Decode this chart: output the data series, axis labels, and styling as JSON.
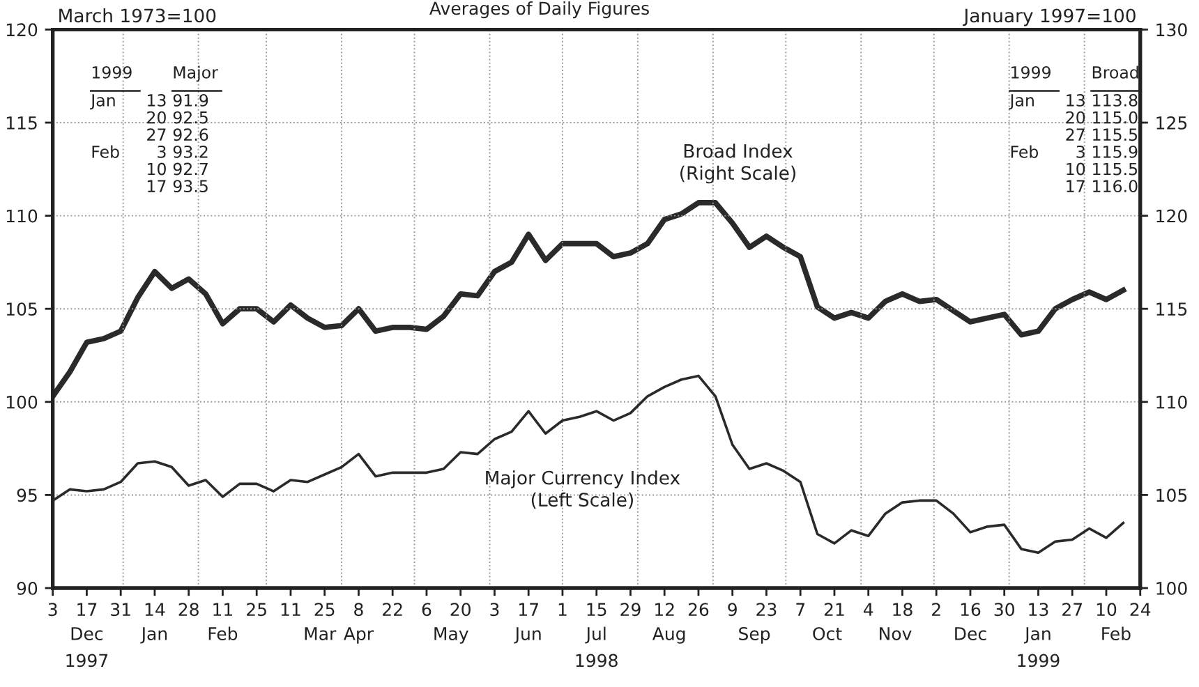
{
  "chart_data": {
    "type": "line",
    "title": "Averages of Daily Figures",
    "ylabel": "March 1973=100",
    "y2label": "January 1997=100",
    "x": [
      "1997-12-03",
      "1997-12-10",
      "1997-12-17",
      "1997-12-24",
      "1997-12-31",
      "1998-01-07",
      "1998-01-14",
      "1998-01-21",
      "1998-01-28",
      "1998-02-04",
      "1998-02-11",
      "1998-02-18",
      "1998-02-25",
      "1998-03-04",
      "1998-03-11",
      "1998-03-18",
      "1998-03-25",
      "1998-04-01",
      "1998-04-08",
      "1998-04-15",
      "1998-04-22",
      "1998-04-29",
      "1998-05-06",
      "1998-05-13",
      "1998-05-20",
      "1998-05-27",
      "1998-06-03",
      "1998-06-10",
      "1998-06-17",
      "1998-06-24",
      "1998-07-01",
      "1998-07-08",
      "1998-07-15",
      "1998-07-22",
      "1998-07-29",
      "1998-08-05",
      "1998-08-12",
      "1998-08-19",
      "1998-08-26",
      "1998-09-02",
      "1998-09-09",
      "1998-09-16",
      "1998-09-23",
      "1998-09-30",
      "1998-10-07",
      "1998-10-14",
      "1998-10-21",
      "1998-10-28",
      "1998-11-04",
      "1998-11-11",
      "1998-11-18",
      "1998-11-25",
      "1998-12-02",
      "1998-12-09",
      "1998-12-16",
      "1998-12-23",
      "1998-12-30",
      "1999-01-06",
      "1999-01-13",
      "1999-01-20",
      "1999-01-27",
      "1999-02-03",
      "1999-02-10",
      "1999-02-17"
    ],
    "series": [
      {
        "name": "Major Currency Index\n(Left Scale)",
        "color": "#2a2a2a",
        "values": [
          94.7,
          95.3,
          95.2,
          95.3,
          95.7,
          96.7,
          96.8,
          96.5,
          95.5,
          95.8,
          94.9,
          95.6,
          95.6,
          95.2,
          95.8,
          95.7,
          96.1,
          96.5,
          97.2,
          96.0,
          96.2,
          96.2,
          96.2,
          96.4,
          97.3,
          97.2,
          98.0,
          98.4,
          99.5,
          98.3,
          99.0,
          99.2,
          99.5,
          99.0,
          99.4,
          100.3,
          100.8,
          101.2,
          101.4,
          100.3,
          97.7,
          96.4,
          96.7,
          96.3,
          95.7,
          92.9,
          92.4,
          93.1,
          92.8,
          94.0,
          94.6,
          94.7,
          94.7,
          94.0,
          93.0,
          93.3,
          93.4,
          92.1,
          91.9,
          92.5,
          92.6,
          93.2,
          92.7,
          93.5
        ]
      },
      {
        "name": "Broad Index\n(Right Scale)",
        "color": "#2a2a2a",
        "axis": "y2",
        "values": [
          110.3,
          111.6,
          113.2,
          113.4,
          113.8,
          115.6,
          117.0,
          116.1,
          116.6,
          115.8,
          114.2,
          115.0,
          115.0,
          114.3,
          115.2,
          114.5,
          114.0,
          114.1,
          115.0,
          113.8,
          114.0,
          114.0,
          113.9,
          114.6,
          115.8,
          115.7,
          117.0,
          117.5,
          119.0,
          117.6,
          118.5,
          118.5,
          118.5,
          117.8,
          118.0,
          118.5,
          119.8,
          120.1,
          120.7,
          120.7,
          119.6,
          118.3,
          118.9,
          118.3,
          117.8,
          115.1,
          114.5,
          114.8,
          114.5,
          115.4,
          115.8,
          115.4,
          115.5,
          114.9,
          114.3,
          114.5,
          114.7,
          113.6,
          113.8,
          115.0,
          115.5,
          115.9,
          115.5,
          116.0
        ]
      }
    ],
    "xlim": [
      "1997-12-03",
      "1999-02-24"
    ],
    "xticks": [
      {
        "value": "1997-12-03",
        "label": "3"
      },
      {
        "value": "1997-12-17",
        "label": "17"
      },
      {
        "value": "1997-12-31",
        "label": "31"
      },
      {
        "value": "1998-01-14",
        "label": "14"
      },
      {
        "value": "1998-01-28",
        "label": "28"
      },
      {
        "value": "1998-02-11",
        "label": "11"
      },
      {
        "value": "1998-02-25",
        "label": "25"
      },
      {
        "value": "1998-03-11",
        "label": "11"
      },
      {
        "value": "1998-03-25",
        "label": "25"
      },
      {
        "value": "1998-04-08",
        "label": "8"
      },
      {
        "value": "1998-04-22",
        "label": "22"
      },
      {
        "value": "1998-05-06",
        "label": "6"
      },
      {
        "value": "1998-05-20",
        "label": "20"
      },
      {
        "value": "1998-06-03",
        "label": "3"
      },
      {
        "value": "1998-06-17",
        "label": "17"
      },
      {
        "value": "1998-07-01",
        "label": "1"
      },
      {
        "value": "1998-07-15",
        "label": "15"
      },
      {
        "value": "1998-07-29",
        "label": "29"
      },
      {
        "value": "1998-08-12",
        "label": "12"
      },
      {
        "value": "1998-08-26",
        "label": "26"
      },
      {
        "value": "1998-09-09",
        "label": "9"
      },
      {
        "value": "1998-09-23",
        "label": "23"
      },
      {
        "value": "1998-10-07",
        "label": "7"
      },
      {
        "value": "1998-10-21",
        "label": "21"
      },
      {
        "value": "1998-11-04",
        "label": "4"
      },
      {
        "value": "1998-11-18",
        "label": "18"
      },
      {
        "value": "1998-12-02",
        "label": "2"
      },
      {
        "value": "1998-12-16",
        "label": "16"
      },
      {
        "value": "1998-12-30",
        "label": "30"
      },
      {
        "value": "1999-01-13",
        "label": "13"
      },
      {
        "value": "1999-01-27",
        "label": "27"
      },
      {
        "value": "1999-02-10",
        "label": "10"
      },
      {
        "value": "1999-02-24",
        "label": "24"
      }
    ],
    "x2lim": [
      "1997-12-03",
      "1999-02-24"
    ],
    "x2ticks": [
      {
        "value": "1997-12-17",
        "label": "Dec\n1997"
      },
      {
        "value": "1998-01-14",
        "label": "Jan"
      },
      {
        "value": "1998-02-11",
        "label": "Feb"
      },
      {
        "value": "1998-03-23",
        "label": "Mar"
      },
      {
        "value": "1998-04-08",
        "label": "Apr"
      },
      {
        "value": "1998-05-16",
        "label": "May"
      },
      {
        "value": "1998-06-17",
        "label": "Jun"
      },
      {
        "value": "1998-07-15",
        "label": "Jul\n1998"
      },
      {
        "value": "1998-08-14",
        "label": "Aug"
      },
      {
        "value": "1998-09-18",
        "label": "Sep"
      },
      {
        "value": "1998-10-18",
        "label": "Oct"
      },
      {
        "value": "1998-11-15",
        "label": "Nov"
      },
      {
        "value": "1998-12-16",
        "label": "Dec"
      },
      {
        "value": "1999-01-13",
        "label": "Jan\n1999"
      },
      {
        "value": "1999-02-14",
        "label": "Feb"
      }
    ],
    "ylim": [
      90,
      120
    ],
    "yticks": [
      90,
      95,
      100,
      105,
      110,
      115,
      120
    ],
    "y2lim": [
      100,
      130
    ],
    "y2ticks": [
      100,
      105,
      110,
      115,
      120,
      125,
      130
    ],
    "grid": "y",
    "marker": "none",
    "line_style": "solid",
    "legend": false,
    "ref_lines": [
      {
        "axis": "x",
        "value": "1998-01-01",
        "color": "#999999",
        "line_style": "dotted"
      },
      {
        "axis": "x",
        "value": "1998-02-01",
        "color": "#999999",
        "line_style": "dotted"
      },
      {
        "axis": "x",
        "value": "1998-03-01",
        "color": "#999999",
        "line_style": "dotted"
      },
      {
        "axis": "x",
        "value": "1998-04-01",
        "color": "#999999",
        "line_style": "dotted"
      },
      {
        "axis": "x",
        "value": "1998-05-01",
        "color": "#999999",
        "line_style": "dotted"
      },
      {
        "axis": "x",
        "value": "1998-06-01",
        "color": "#999999",
        "line_style": "dotted"
      },
      {
        "axis": "x",
        "value": "1998-07-01",
        "color": "#999999",
        "line_style": "dotted"
      },
      {
        "axis": "x",
        "value": "1998-08-01",
        "color": "#999999",
        "line_style": "dotted"
      },
      {
        "axis": "x",
        "value": "1998-09-01",
        "color": "#999999",
        "line_style": "dotted"
      },
      {
        "axis": "x",
        "value": "1998-10-01",
        "color": "#999999",
        "line_style": "dotted"
      },
      {
        "axis": "x",
        "value": "1998-11-01",
        "color": "#999999",
        "line_style": "dotted"
      },
      {
        "axis": "x",
        "value": "1998-12-01",
        "color": "#999999",
        "line_style": "dotted"
      },
      {
        "axis": "x",
        "value": "1999-01-01",
        "color": "#999999",
        "line_style": "dotted"
      },
      {
        "axis": "x",
        "value": "1999-02-01",
        "color": "#999999",
        "line_style": "dotted"
      }
    ],
    "annotations": [
      "1999",
      "Major",
      "Jan\n\n\nFeb\n\n",
      "13\n20\n27\n3\n10\n17",
      "91.9\n92.5\n92.6\n93.2\n92.7\n93.5",
      "1999",
      "Broad",
      "Jan\n\n\nFeb\n\n",
      "13\n20\n27\n3\n10\n17",
      "113.8\n115.0\n115.5\n115.9\n115.5\n116.0"
    ]
  }
}
